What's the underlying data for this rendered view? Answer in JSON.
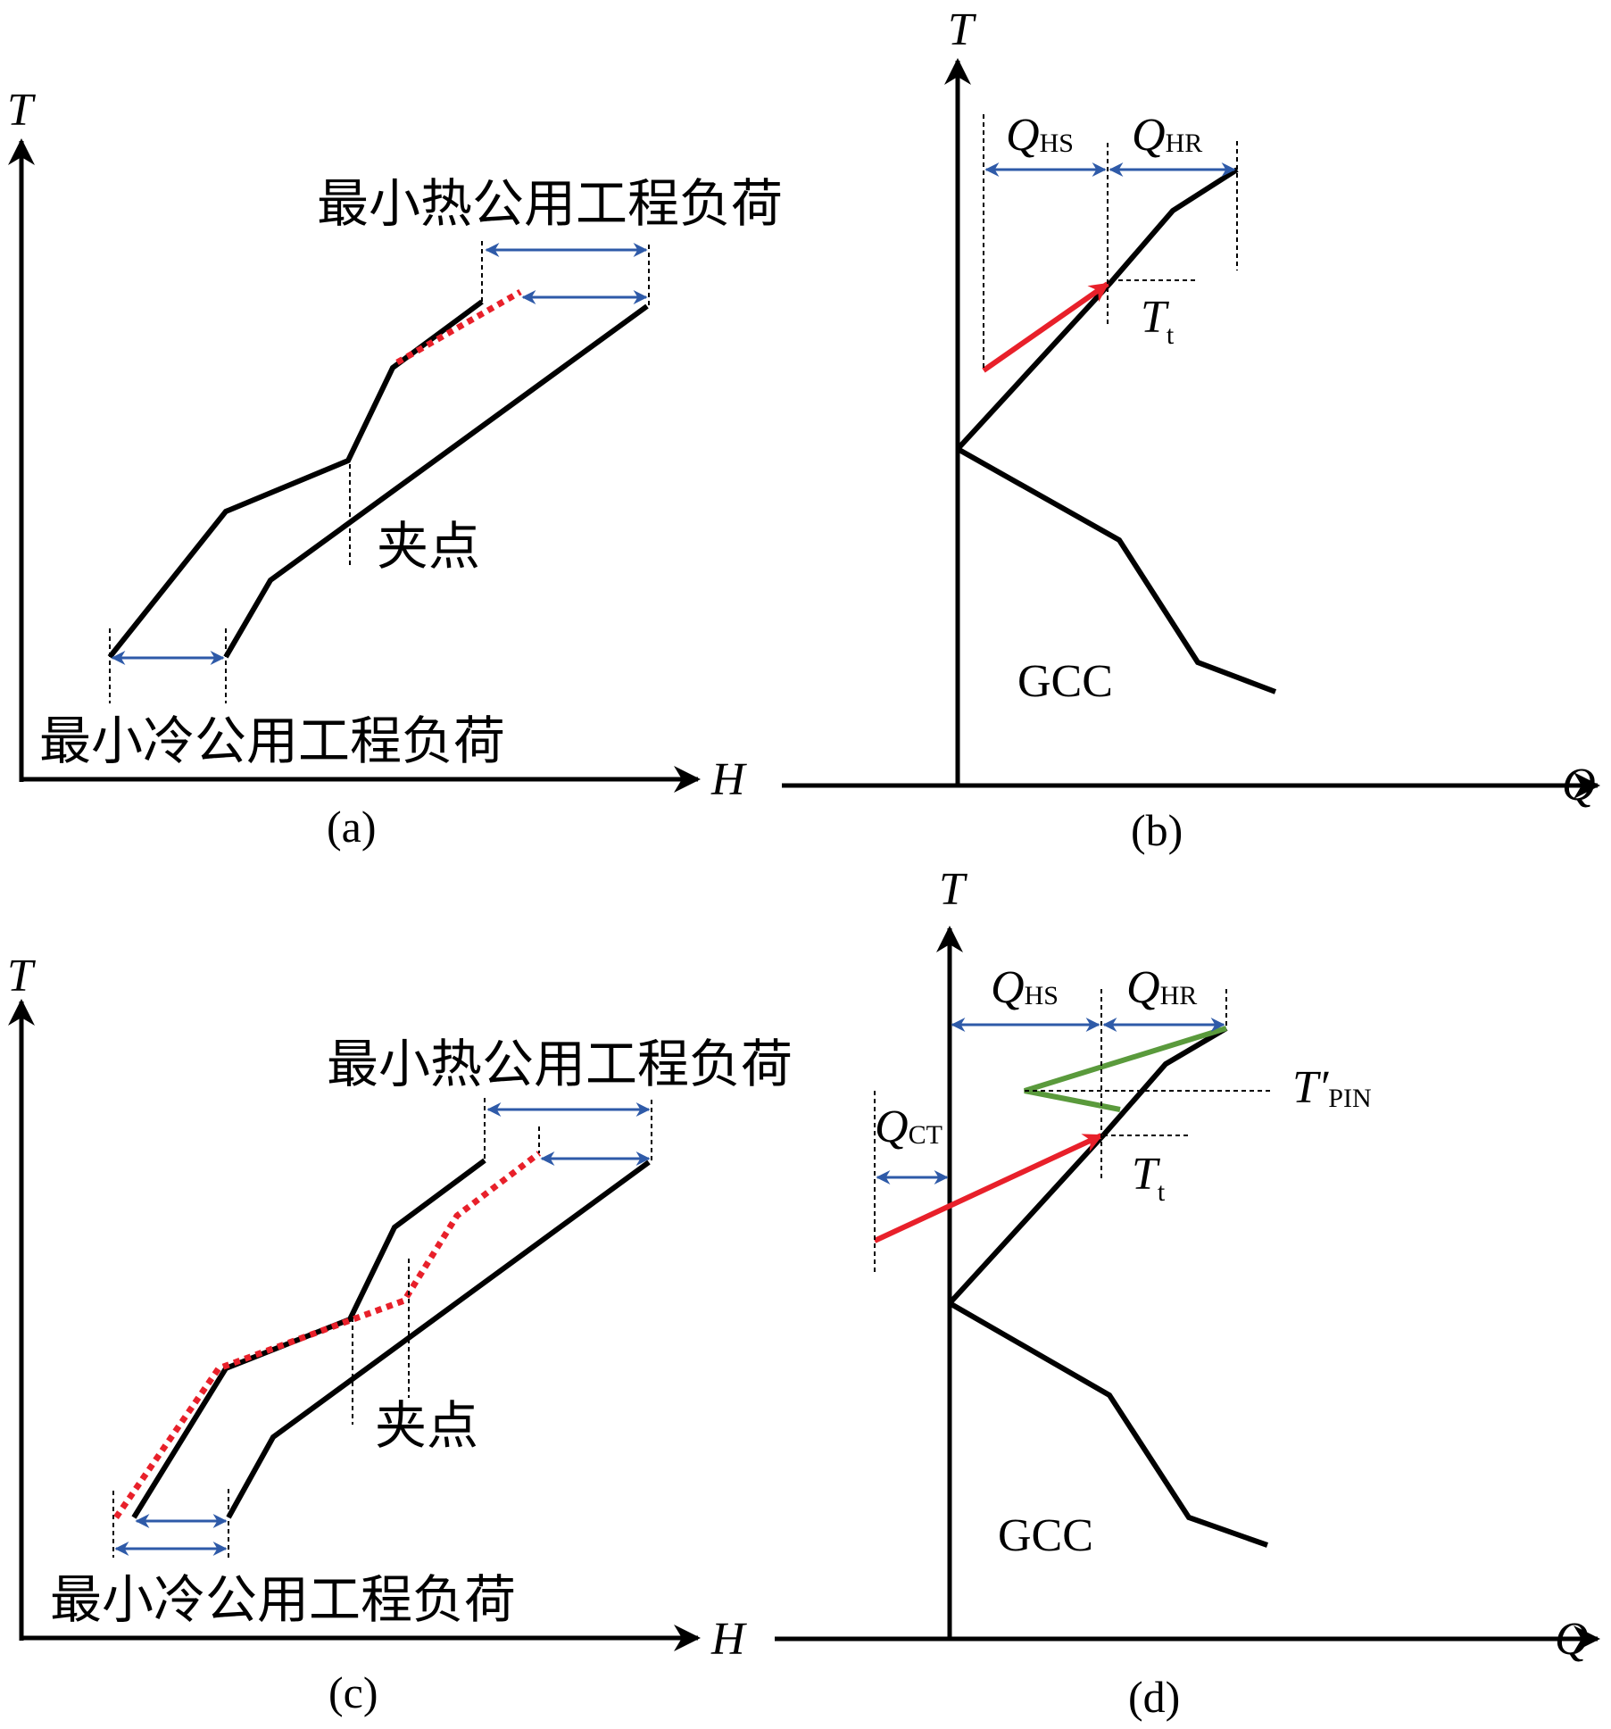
{
  "panels": {
    "a": {
      "caption": "(a)",
      "axis_x": "H",
      "axis_y": "T",
      "hot_utility_label": "最小热公用工程负荷",
      "cold_utility_label": "最小冷公用工程负荷",
      "pinch_label": "夹点"
    },
    "b": {
      "caption": "(b)",
      "axis_x": "Q",
      "axis_y": "T",
      "q_hs_main": "Q",
      "q_hs_sub": "HS",
      "q_hr_main": "Q",
      "q_hr_sub": "HR",
      "tt_main": "T",
      "tt_sub": "t",
      "gcc_label": "GCC"
    },
    "c": {
      "caption": "(c)",
      "axis_x": "H",
      "axis_y": "T",
      "hot_utility_label": "最小热公用工程负荷",
      "cold_utility_label": "最小冷公用工程负荷",
      "pinch_label": "夹点"
    },
    "d": {
      "caption": "(d)",
      "axis_x": "Q",
      "axis_y": "T",
      "q_hs_main": "Q",
      "q_hs_sub": "HS",
      "q_hr_main": "Q",
      "q_hr_sub": "HR",
      "q_ct_main": "Q",
      "q_ct_sub": "CT",
      "tt_main": "T",
      "tt_sub": "t",
      "tpin_main": "T′",
      "tpin_sub": "PIN",
      "gcc_label": "GCC"
    }
  },
  "colors": {
    "curve": "#000000",
    "dimension_arrow": "#2e5aa8",
    "modified_curve": "#e8202a",
    "heat_pump_arrow": "#e8202a",
    "green_loop": "#5a9a3c"
  }
}
